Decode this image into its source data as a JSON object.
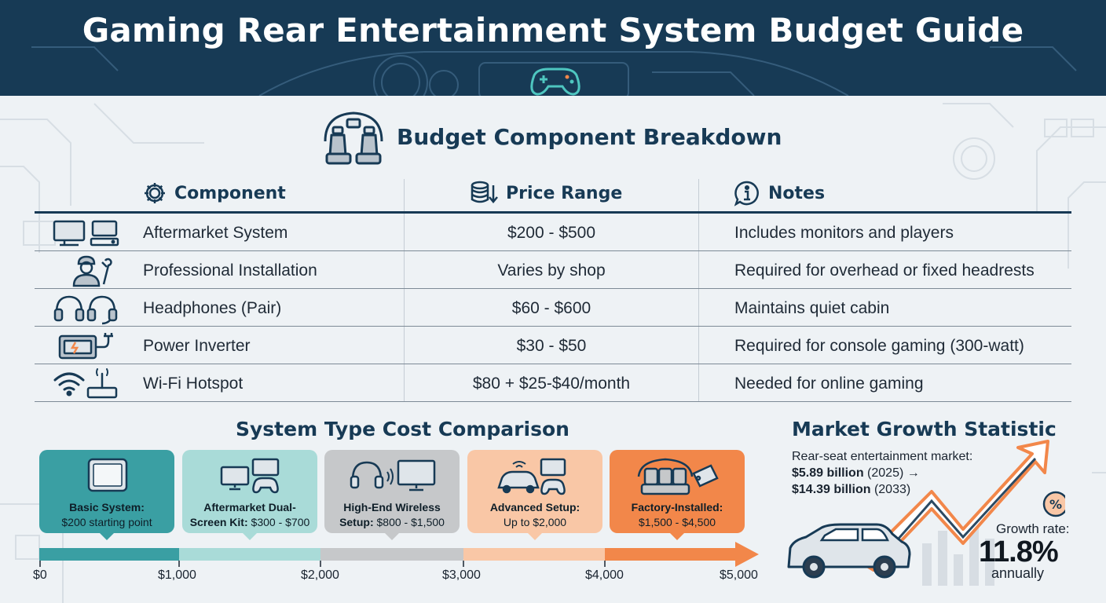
{
  "header": {
    "title": "Gaming Rear Entertainment System Budget Guide"
  },
  "budget": {
    "title": "Budget Component Breakdown",
    "columns": {
      "component": "Component",
      "price": "Price Range",
      "notes": "Notes"
    },
    "rows": [
      {
        "component": "Aftermarket System",
        "price": "$200 - $500",
        "notes": "Includes monitors and players",
        "icon": "monitor-player-icon"
      },
      {
        "component": "Professional Installation",
        "price": "Varies by shop",
        "notes": "Required for overhead or fixed headrests",
        "icon": "installer-icon"
      },
      {
        "component": "Headphones (Pair)",
        "price": "$60 - $600",
        "notes": "Maintains quiet cabin",
        "icon": "headphones-icon"
      },
      {
        "component": "Power Inverter",
        "price": "$30 - $50",
        "notes": "Required for console gaming (300-watt)",
        "icon": "power-inverter-icon"
      },
      {
        "component": "Wi-Fi Hotspot",
        "price": "$80 + $25-$40/month",
        "notes": "Needed for online gaming",
        "icon": "wifi-hotspot-icon"
      }
    ]
  },
  "systems": {
    "title": "System Type Cost Comparison",
    "cards": [
      {
        "name": "Basic System:",
        "detail": "$200 starting point",
        "color": "#3a9fa3"
      },
      {
        "name": "Aftermarket Dual-",
        "name2": "Screen Kit:",
        "detail": "$300 - $700",
        "color": "#a9dbd8"
      },
      {
        "name": "High-End Wireless",
        "name2": "Setup:",
        "detail": "$800 - $1,500",
        "color": "#c6c8ca"
      },
      {
        "name": "Advanced Setup:",
        "detail": "Up to $2,000",
        "color": "#f9c7a6"
      },
      {
        "name": "Factory-Installed:",
        "detail": "$1,500 - $4,500",
        "color": "#f2874a"
      }
    ],
    "scale": {
      "ticks": [
        "$0",
        "$1,000",
        "$2,000",
        "$3,000",
        "$4,000",
        "$5,000"
      ],
      "segment_colors": [
        "#3a9fa3",
        "#a9dbd8",
        "#c6c8ca",
        "#f9c7a6",
        "#f2874a"
      ]
    }
  },
  "market": {
    "title": "Market Growth Statistic",
    "line1": "Rear-seat entertainment market:",
    "value_2025": "$5.89 billion",
    "year_2025": "(2025) →",
    "value_2033": "$14.39 billion",
    "year_2033": "(2033)",
    "growth_label": "Growth rate:",
    "growth_value": "11.8%",
    "growth_period": "annually"
  },
  "colors": {
    "navy": "#173a55",
    "teal": "#3a9fa3",
    "orange": "#f2874a"
  }
}
